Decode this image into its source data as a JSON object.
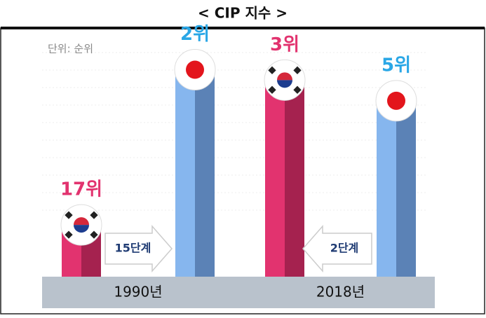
{
  "chart_data": {
    "type": "bar",
    "title": "< CIP 지수 >",
    "subtitle": "단위: 순위",
    "categories": [
      "1990년",
      "2018년"
    ],
    "series": [
      {
        "color": "#e2336f",
        "values": [
          17,
          3
        ],
        "value_labels": [
          "17위",
          "3위"
        ]
      },
      {
        "color": "#86b6ee",
        "values": [
          2,
          5
        ],
        "value_labels": [
          "2위",
          "5위"
        ]
      }
    ],
    "ylim": [
      22,
      0
    ],
    "annotations": [
      {
        "text": "15단계"
      },
      {
        "text": "2단계"
      }
    ]
  }
}
